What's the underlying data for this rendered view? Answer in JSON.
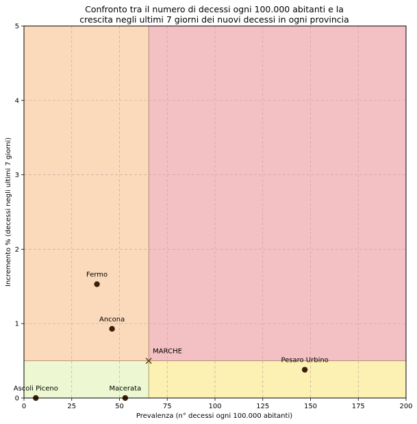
{
  "chart_data": {
    "type": "scatter",
    "title": "Confronto tra il numero di decessi ogni 100.000 abitanti e la",
    "subtitle": "crescita negli ultimi 7 giorni dei nuovi decessi in ogni provincia",
    "xlabel": "Prevalenza (n° decessi ogni 100.000 abitanti)",
    "ylabel": "Incremento % (decessi negli ultimi 7 giorni)",
    "xlim": [
      0,
      200
    ],
    "ylim": [
      0,
      5
    ],
    "xticks": [
      0,
      25,
      50,
      75,
      100,
      125,
      150,
      175,
      200
    ],
    "yticks": [
      0,
      1,
      2,
      3,
      4,
      5
    ],
    "grid": true,
    "reference": {
      "label": "MARCHE",
      "x": 65.3,
      "y": 0.5,
      "marker": "x"
    },
    "quadrants": {
      "top_left": "#fbdabb",
      "top_right": "#f3c0c3",
      "bottom_left": "#edf8d2",
      "bottom_right": "#fcf0b2"
    },
    "point_color": "#3b2007",
    "reference_color": "#5a4515",
    "points": [
      {
        "label": "Fermo",
        "x": 38.2,
        "y": 1.53
      },
      {
        "label": "Ancona",
        "x": 46.1,
        "y": 0.93
      },
      {
        "label": "Pesaro Urbino",
        "x": 147.0,
        "y": 0.38
      },
      {
        "label": "Ascoli Piceno",
        "x": 6.2,
        "y": 0.0
      },
      {
        "label": "Macerata",
        "x": 53.0,
        "y": 0.0
      }
    ]
  }
}
